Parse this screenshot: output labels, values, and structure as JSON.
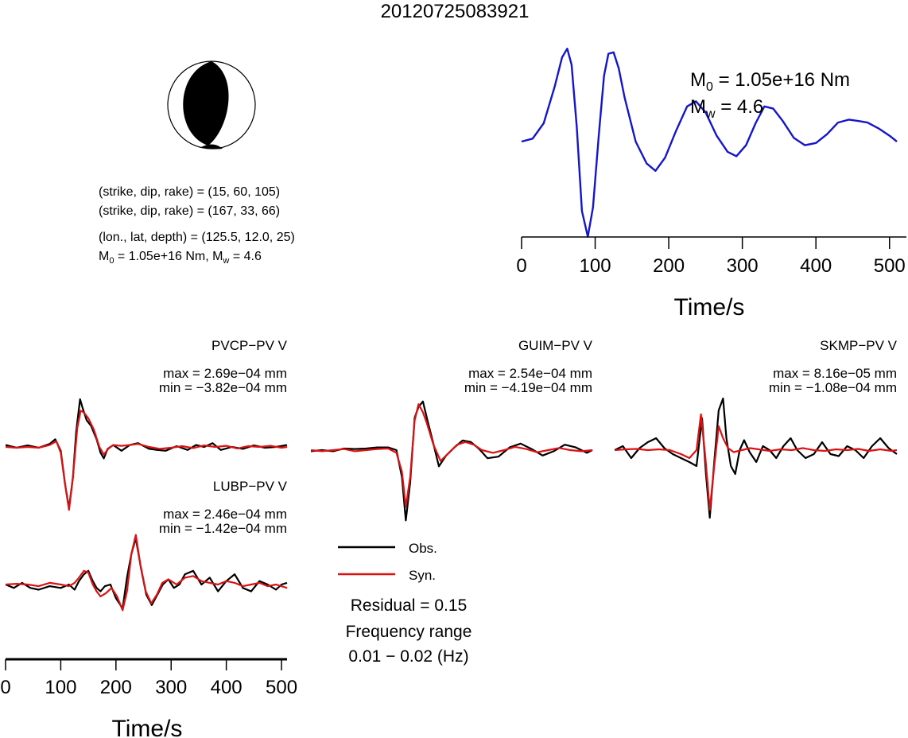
{
  "page_title": "20120725083921",
  "colors": {
    "observed": "#000000",
    "synthetic": "#dd1111",
    "source_time_function": "#1515cc"
  },
  "focal_mechanism": {
    "symbol": "beachball-icon",
    "planes": [
      {
        "label": "(strike, dip, rake) = (15, 60, 105)"
      },
      {
        "label": "(strike, dip, rake) = (167, 33, 66)"
      }
    ],
    "location": "(lon., lat, depth) = (125.5, 12.0, 25)",
    "moment_line": {
      "m": "M",
      "sub0": "0",
      "val1": " = 1.05e+16 Nm, M",
      "subw": "w",
      "val2": " = 4.6"
    }
  },
  "stf_annotation": {
    "m0": {
      "m": "M",
      "sub": "0",
      "val": " = 1.05e+16 Nm"
    },
    "mw": {
      "m": "M",
      "sub": "w",
      "val": " = 4.6"
    }
  },
  "legend": {
    "obs": "Obs.",
    "syn": "Syn."
  },
  "residual": "Residual = 0.15",
  "frequency": {
    "label": "Frequency range",
    "value": "0.01 − 0.02 (Hz)"
  },
  "chart_data": [
    {
      "type": "line",
      "name": "source-time-function",
      "xlabel": "Time/s",
      "ylabel": "",
      "xlim": [
        0,
        510
      ],
      "x_ticks": [
        "0",
        "100",
        "200",
        "300",
        "400",
        "500"
      ],
      "series": [
        {
          "x": [
            0,
            15,
            30,
            45,
            55,
            62,
            68,
            75,
            82,
            90,
            97,
            105,
            112,
            118,
            125,
            132,
            140,
            155,
            170,
            182,
            195,
            210,
            225,
            237,
            250,
            265,
            280,
            292,
            305,
            318,
            330,
            342,
            355,
            370,
            385,
            400,
            415,
            430,
            445,
            458,
            470,
            485,
            500,
            510
          ],
          "y": [
            0.0,
            0.04,
            0.25,
            0.75,
            1.15,
            1.27,
            1.05,
            0.2,
            -0.95,
            -1.3,
            -0.9,
            0.1,
            0.9,
            1.2,
            1.22,
            1.0,
            0.6,
            0.0,
            -0.3,
            -0.4,
            -0.22,
            0.15,
            0.48,
            0.55,
            0.4,
            0.08,
            -0.14,
            -0.2,
            -0.05,
            0.25,
            0.48,
            0.45,
            0.28,
            0.05,
            -0.05,
            -0.02,
            0.1,
            0.26,
            0.3,
            0.28,
            0.26,
            0.18,
            0.08,
            0.0
          ]
        }
      ]
    },
    {
      "type": "line",
      "name": "waveforms",
      "xlabel": "Time/s",
      "ylabel": "",
      "xlim": [
        0,
        510
      ],
      "x_ticks": [
        "0",
        "100",
        "200",
        "300",
        "400",
        "500"
      ],
      "stations": [
        {
          "name": "PVCP−PV V",
          "max": "max = 2.69e−04 mm",
          "min": "min = −3.82e−04 mm",
          "series": [
            {
              "name": "Obs.",
              "x": [
                0,
                20,
                40,
                60,
                80,
                90,
                100,
                108,
                115,
                122,
                128,
                135,
                140,
                147,
                155,
                165,
                172,
                178,
                185,
                195,
                210,
                225,
                240,
                260,
                275,
                290,
                310,
                330,
                345,
                360,
                375,
                390,
                410,
                430,
                450,
                470,
                490,
                510
              ],
              "y": [
                0.05,
                -0.02,
                0.04,
                -0.02,
                0.08,
                0.2,
                -0.1,
                -1.0,
                -1.6,
                -0.8,
                0.4,
                1.25,
                1.0,
                0.7,
                0.55,
                0.2,
                -0.15,
                -0.3,
                -0.05,
                0.05,
                -0.1,
                0.05,
                0.1,
                -0.05,
                -0.08,
                -0.1,
                0.02,
                -0.08,
                0.05,
                0.0,
                0.1,
                -0.08,
                0.0,
                -0.05,
                0.04,
                -0.02,
                0.0,
                0.05
              ]
            },
            {
              "name": "Syn.",
              "x": [
                0,
                20,
                40,
                60,
                80,
                92,
                100,
                108,
                115,
                122,
                130,
                136,
                142,
                150,
                160,
                170,
                178,
                186,
                195,
                210,
                225,
                240,
                260,
                280,
                300,
                320,
                340,
                360,
                380,
                400,
                420,
                440,
                460,
                480,
                500,
                510
              ],
              "y": [
                0.0,
                -0.02,
                0.0,
                -0.02,
                0.05,
                0.15,
                -0.15,
                -1.0,
                -1.65,
                -0.8,
                0.5,
                0.95,
                0.9,
                0.75,
                0.45,
                0.0,
                -0.2,
                -0.05,
                0.05,
                0.03,
                0.05,
                0.08,
                0.0,
                -0.05,
                -0.02,
                0.02,
                -0.03,
                0.04,
                0.0,
                0.03,
                -0.04,
                0.02,
                0.0,
                0.03,
                -0.02,
                0.0
              ]
            }
          ]
        },
        {
          "name": "GUIM−PV V",
          "max": "max = 2.54e−04 mm",
          "min": "min = −4.19e−04 mm",
          "series": [
            {
              "name": "Obs.",
              "x": [
                0,
                20,
                40,
                60,
                80,
                100,
                120,
                140,
                155,
                165,
                172,
                180,
                188,
                195,
                203,
                210,
                220,
                232,
                245,
                260,
                275,
                290,
                305,
                320,
                340,
                360,
                380,
                400,
                420,
                440,
                460,
                480,
                500,
                510
              ],
              "y": [
                -0.02,
                0.0,
                -0.02,
                0.03,
                0.02,
                0.03,
                0.05,
                0.05,
                0.0,
                -0.5,
                -1.3,
                -0.6,
                0.6,
                0.8,
                0.9,
                0.6,
                0.2,
                -0.3,
                -0.1,
                0.05,
                0.18,
                0.15,
                0.02,
                -0.15,
                -0.12,
                0.05,
                0.12,
                0.02,
                -0.1,
                -0.02,
                0.1,
                0.05,
                -0.05,
                0.0
              ]
            },
            {
              "name": "Syn.",
              "x": [
                0,
                20,
                40,
                60,
                80,
                100,
                120,
                140,
                155,
                165,
                172,
                180,
                188,
                195,
                203,
                210,
                222,
                235,
                250,
                265,
                280,
                295,
                310,
                330,
                350,
                370,
                390,
                410,
                430,
                450,
                470,
                490,
                510
              ],
              "y": [
                0.0,
                -0.02,
                0.0,
                0.02,
                -0.02,
                0.0,
                0.02,
                0.03,
                -0.05,
                -0.4,
                -1.05,
                -0.5,
                0.55,
                0.85,
                0.7,
                0.5,
                0.1,
                -0.2,
                -0.05,
                0.1,
                0.15,
                0.1,
                0.0,
                -0.05,
                0.0,
                0.06,
                0.02,
                -0.04,
                0.0,
                0.04,
                0.0,
                -0.02,
                0.0
              ]
            }
          ]
        },
        {
          "name": "SKMP−PV V",
          "max": "max = 8.16e−05 mm",
          "min": "min = −1.08e−04 mm",
          "series": [
            {
              "name": "Obs.",
              "x": [
                0,
                15,
                30,
                45,
                60,
                75,
                90,
                105,
                120,
                135,
                148,
                158,
                165,
                172,
                180,
                188,
                196,
                202,
                210,
                218,
                226,
                234,
                244,
                256,
                268,
                280,
                292,
                305,
                318,
                330,
                345,
                360,
                375,
                390,
                405,
                420,
                435,
                450,
                465,
                480,
                495,
                510
              ],
              "y": [
                0.0,
                0.1,
                -0.2,
                0.05,
                0.2,
                0.3,
                0.05,
                -0.1,
                -0.2,
                -0.3,
                -0.4,
                0.8,
                -0.6,
                -1.7,
                -0.3,
                1.0,
                1.3,
                0.3,
                -0.4,
                -0.6,
                0.0,
                0.25,
                -0.05,
                -0.3,
                0.1,
                0.0,
                -0.2,
                0.1,
                0.3,
                0.0,
                -0.2,
                -0.1,
                0.2,
                -0.1,
                -0.15,
                0.1,
                0.0,
                -0.2,
                0.1,
                0.3,
                0.05,
                -0.1
              ]
            },
            {
              "name": "Syn.",
              "x": [
                0,
                20,
                40,
                60,
                80,
                100,
                120,
                135,
                148,
                156,
                164,
                172,
                180,
                188,
                196,
                205,
                215,
                230,
                245,
                260,
                280,
                300,
                320,
                340,
                360,
                380,
                400,
                420,
                440,
                460,
                480,
                500,
                510
              ],
              "y": [
                0.0,
                0.02,
                0.03,
                0.0,
                0.02,
                0.0,
                -0.1,
                -0.2,
                0.0,
                0.9,
                -0.2,
                -1.5,
                -0.4,
                0.6,
                0.3,
                0.05,
                -0.05,
                0.0,
                0.05,
                0.02,
                -0.02,
                0.02,
                0.0,
                0.05,
                0.0,
                -0.02,
                0.02,
                0.0,
                0.03,
                -0.02,
                0.02,
                -0.02,
                0.0
              ]
            }
          ]
        },
        {
          "name": "LUBP−PV V",
          "max": "max = 2.46e−04 mm",
          "min": "min = −1.42e−04 mm",
          "series": [
            {
              "name": "Obs.",
              "x": [
                0,
                15,
                30,
                45,
                60,
                80,
                100,
                115,
                125,
                133,
                142,
                150,
                158,
                165,
                172,
                180,
                190,
                200,
                212,
                220,
                228,
                236,
                245,
                255,
                265,
                275,
                285,
                295,
                305,
                315,
                325,
                340,
                355,
                370,
                385,
                400,
                415,
                430,
                445,
                460,
                475,
                490,
                500,
                510
              ],
              "y": [
                0.0,
                -0.1,
                0.05,
                -0.1,
                -0.15,
                -0.05,
                -0.1,
                0.0,
                -0.15,
                0.1,
                0.3,
                0.4,
                0.1,
                -0.1,
                -0.2,
                -0.05,
                0.0,
                -0.4,
                -0.7,
                0.2,
                0.9,
                1.35,
                0.5,
                -0.3,
                -0.6,
                -0.3,
                0.0,
                0.15,
                -0.1,
                0.0,
                0.3,
                0.4,
                0.0,
                0.2,
                -0.2,
                0.1,
                0.3,
                -0.1,
                -0.2,
                0.1,
                0.0,
                -0.15,
                0.0,
                0.05
              ]
            },
            {
              "name": "Syn.",
              "x": [
                0,
                20,
                40,
                60,
                80,
                100,
                115,
                125,
                133,
                142,
                150,
                158,
                165,
                172,
                182,
                192,
                202,
                212,
                220,
                228,
                236,
                244,
                254,
                264,
                274,
                284,
                295,
                310,
                325,
                340,
                355,
                370,
                385,
                400,
                415,
                430,
                445,
                460,
                475,
                490,
                510
              ],
              "y": [
                0.0,
                0.02,
                0.0,
                -0.05,
                0.05,
                0.0,
                -0.05,
                0.05,
                0.2,
                0.4,
                0.35,
                0.0,
                -0.2,
                -0.35,
                -0.25,
                -0.1,
                -0.35,
                -0.75,
                -0.2,
                0.9,
                1.45,
                0.6,
                -0.2,
                -0.55,
                -0.3,
                0.05,
                0.15,
                0.0,
                0.2,
                0.25,
                0.1,
                0.05,
                0.0,
                0.1,
                0.05,
                -0.05,
                0.0,
                0.05,
                -0.05,
                0.0,
                -0.1
              ]
            }
          ]
        }
      ]
    }
  ]
}
